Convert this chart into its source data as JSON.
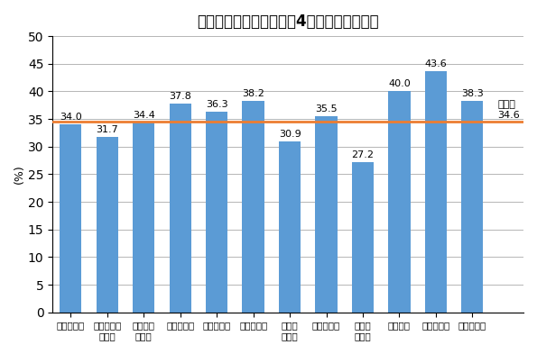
{
  "title": "むし歯のある者の割合（4歳児・保健所別）",
  "ylabel": "(%)",
  "categories": [
    "水戸保健所",
    "ひたちなか\n保健所",
    "常陸大宮\n保健所",
    "日立保健所",
    "鉾田保健所",
    "潮来保健所",
    "竜ケ崎\n保健所",
    "土浦保健所",
    "つくば\n保健所",
    "筑西健所",
    "常総保健所",
    "古河保健所"
  ],
  "values": [
    34.0,
    31.7,
    34.4,
    37.8,
    36.3,
    38.2,
    30.9,
    35.5,
    27.2,
    40.0,
    43.6,
    38.3
  ],
  "bar_color": "#5B9BD5",
  "average_value": 34.6,
  "average_label": "県平均\n34.6",
  "average_line_color": "#ED7D31",
  "ylim": [
    0,
    50
  ],
  "yticks": [
    0,
    5,
    10,
    15,
    20,
    25,
    30,
    35,
    40,
    45,
    50
  ],
  "value_fontsize": 8.0,
  "label_fontsize": 7.5,
  "title_fontsize": 12,
  "ylabel_fontsize": 9,
  "background_color": "#FFFFFF",
  "grid_color": "#AAAAAA"
}
